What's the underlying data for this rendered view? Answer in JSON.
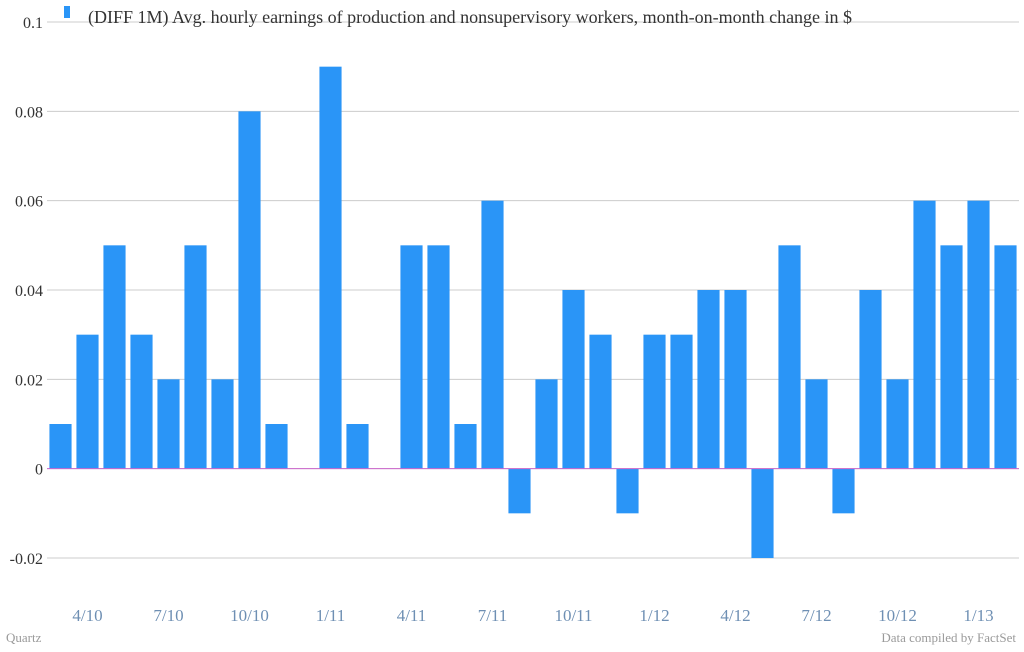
{
  "footer": {
    "left": "Quartz",
    "right": "Data compiled by FactSet"
  },
  "colors": {
    "bar": "#2a95f7",
    "grid": "#cccccc",
    "zero_line": "#cc66cc"
  },
  "chart_data": {
    "type": "bar",
    "title": "",
    "xlabel": "",
    "ylabel": "",
    "legend": "top-left",
    "grid": true,
    "series": [
      {
        "name": "(DIFF 1M) Avg. hourly earnings of production and nonsupervisory workers, month-on-month change in $",
        "values": [
          0.01,
          0.03,
          0.05,
          0.03,
          0.02,
          0.05,
          0.02,
          0.08,
          0.01,
          0.0,
          0.09,
          0.01,
          0.0,
          0.05,
          0.05,
          0.01,
          0.06,
          -0.01,
          0.02,
          0.04,
          0.03,
          -0.01,
          0.03,
          0.03,
          0.04,
          0.04,
          -0.02,
          0.05,
          0.02,
          -0.01,
          0.04,
          0.02,
          0.06,
          0.05,
          0.06,
          0.05
        ]
      }
    ],
    "categories": [
      "3/10",
      "4/10",
      "5/10",
      "6/10",
      "7/10",
      "8/10",
      "9/10",
      "10/10",
      "11/10",
      "12/10",
      "1/11",
      "2/11",
      "3/11",
      "4/11",
      "5/11",
      "6/11",
      "7/11",
      "8/11",
      "9/11",
      "10/11",
      "11/11",
      "12/11",
      "1/12",
      "2/12",
      "3/12",
      "4/12",
      "5/12",
      "6/12",
      "7/12",
      "8/12",
      "9/12",
      "10/12",
      "11/12",
      "12/12",
      "1/13",
      "2/13"
    ],
    "x_tick_labels": [
      "4/10",
      "7/10",
      "10/10",
      "1/11",
      "4/11",
      "7/11",
      "10/11",
      "1/12",
      "4/12",
      "7/12",
      "10/12",
      "1/13"
    ],
    "y_tick_labels": [
      "0.1",
      "0.08",
      "0.06",
      "0.04",
      "0.02",
      "0",
      "-0.02"
    ],
    "y_ticks": [
      0.1,
      0.08,
      0.06,
      0.04,
      0.02,
      0,
      -0.02
    ],
    "ylim": [
      -0.02,
      0.1
    ]
  }
}
